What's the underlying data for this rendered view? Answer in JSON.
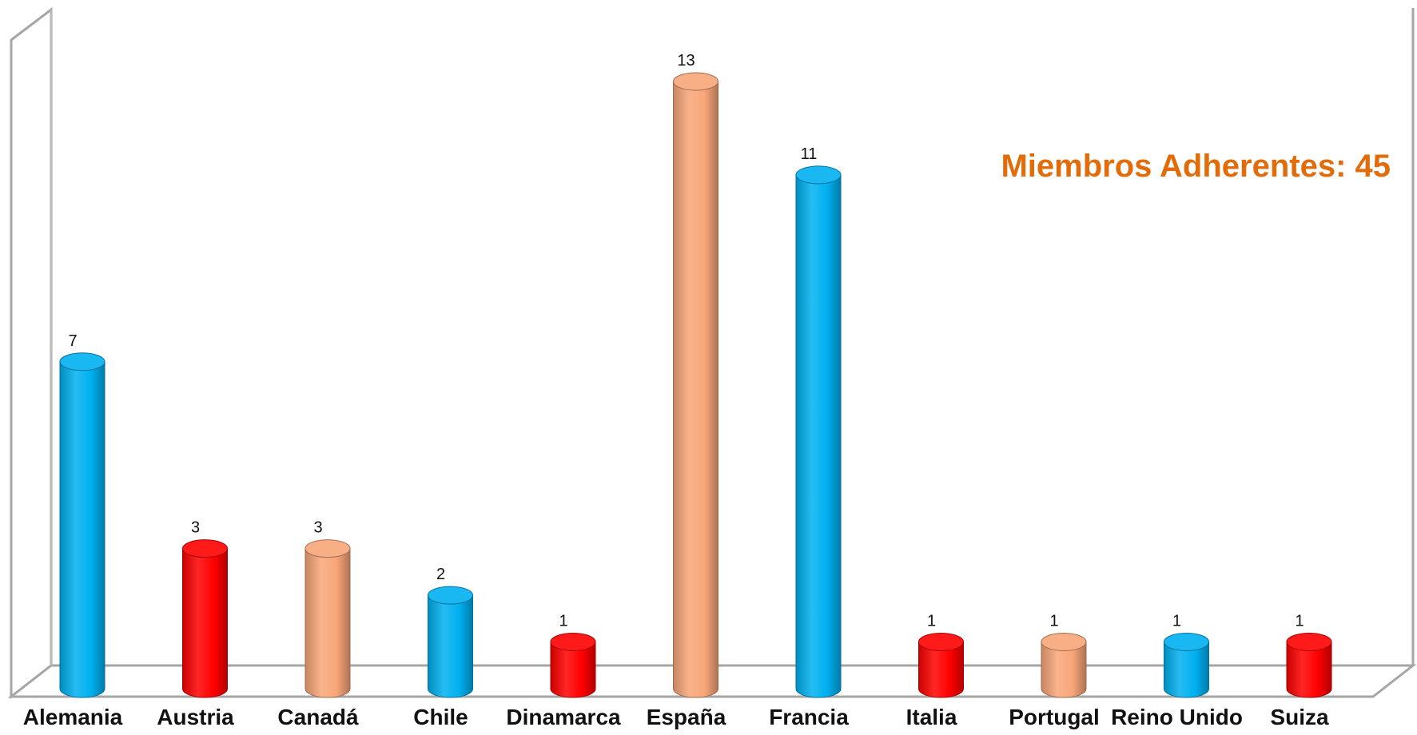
{
  "chart_data": {
    "type": "bar",
    "style": "3d-cylinder",
    "title": "",
    "xlabel": "",
    "ylabel": "",
    "ylim": [
      0,
      14
    ],
    "grid": false,
    "legend": "none",
    "categories": [
      "Alemania",
      "Austria",
      "Canadá",
      "Chile",
      "Dinamarca",
      "España",
      "Francia",
      "Italia",
      "Portugal",
      "Reino Unido",
      "Suiza"
    ],
    "values": [
      7,
      3,
      3,
      2,
      1,
      13,
      11,
      1,
      1,
      1,
      1
    ],
    "data_labels": [
      "7",
      "3",
      "3",
      "2",
      "1",
      "13",
      "11",
      "1",
      "1",
      "1",
      "1"
    ],
    "bar_colors": [
      "#00b0f0",
      "#ff0000",
      "#f8a678",
      "#00b0f0",
      "#ff0000",
      "#f8a678",
      "#00b0f0",
      "#ff0000",
      "#f8a678",
      "#00b0f0",
      "#ff0000"
    ],
    "annotation": {
      "text": "Miembros Adherentes: 45",
      "color": "#e36c0a"
    }
  },
  "colors": {
    "frame": "#a6a6a6",
    "text": "#111111"
  }
}
